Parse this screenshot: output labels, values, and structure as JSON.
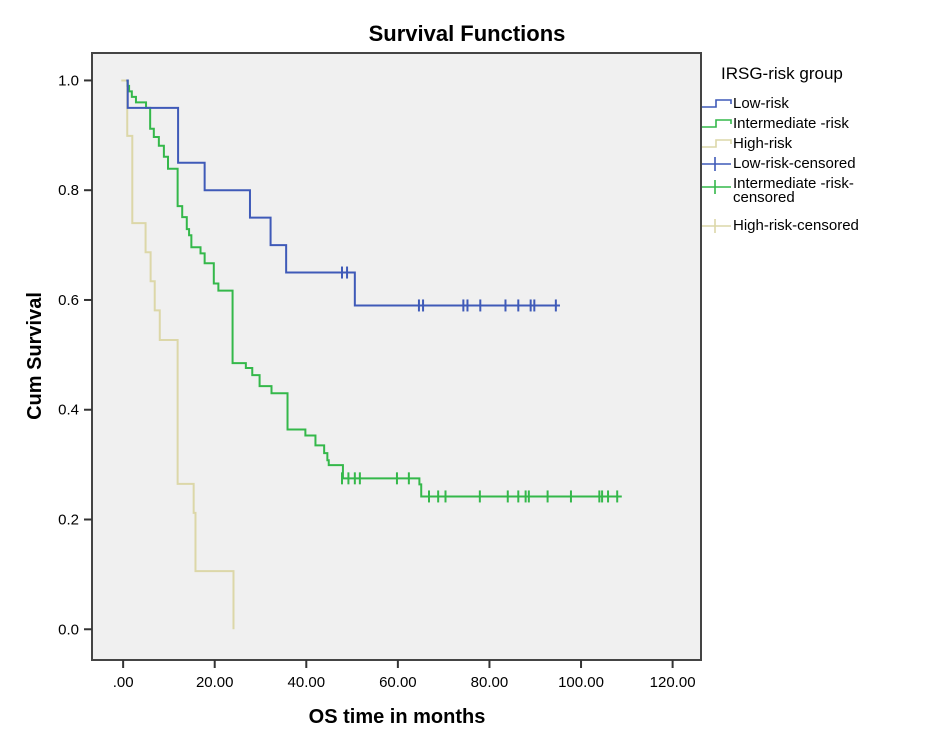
{
  "chart_data": {
    "type": "line",
    "subtype": "kaplan-meier-step",
    "title": "Survival Functions",
    "xlabel": "OS time in months",
    "ylabel": "Cum Survival",
    "xlim": [
      -6.8,
      126.2
    ],
    "ylim": [
      -0.056,
      1.05
    ],
    "xticks": [
      0,
      20,
      40,
      60,
      80,
      100,
      120
    ],
    "xtick_labels": [
      ".00",
      "20.00",
      "40.00",
      "60.00",
      "80.00",
      "100.00",
      "120.00"
    ],
    "yticks": [
      0.0,
      0.2,
      0.4,
      0.6,
      0.8,
      1.0
    ],
    "ytick_labels": [
      "0.0",
      "0.2",
      "0.4",
      "0.6",
      "0.8",
      "1.0"
    ],
    "grid": false,
    "plot_background": "#f0f0f0",
    "legend": {
      "title": "IRSG-risk group",
      "position": "right",
      "entries": [
        {
          "label": "Low-risk",
          "kind": "line",
          "color": "#3f5ab8"
        },
        {
          "label": "Intermediate -risk",
          "kind": "line",
          "color": "#34b84a"
        },
        {
          "label": "High-risk",
          "kind": "line",
          "color": "#dcd7a8"
        },
        {
          "label": "Low-risk-censored",
          "kind": "censor",
          "color": "#3f5ab8"
        },
        {
          "label": [
            "Intermediate -risk-",
            "censored"
          ],
          "kind": "censor",
          "color": "#34b84a"
        },
        {
          "label": "High-risk-censored",
          "kind": "censor",
          "color": "#dcd7a8"
        }
      ]
    },
    "series": [
      {
        "name": "Low-risk",
        "color": "#3f5ab8",
        "start": [
          0.7,
          1.0
        ],
        "steps": [
          [
            1.0,
            0.95
          ],
          [
            12.0,
            0.85
          ],
          [
            17.8,
            0.8
          ],
          [
            27.7,
            0.75
          ],
          [
            32.2,
            0.7
          ],
          [
            35.6,
            0.65
          ],
          [
            50.6,
            0.59
          ]
        ],
        "end_time": 95.4,
        "censored": [
          [
            47.8,
            0.65
          ],
          [
            48.9,
            0.65
          ],
          [
            64.6,
            0.59
          ],
          [
            65.5,
            0.59
          ],
          [
            74.3,
            0.59
          ],
          [
            75.2,
            0.59
          ],
          [
            78.0,
            0.59
          ],
          [
            83.5,
            0.59
          ],
          [
            86.3,
            0.59
          ],
          [
            89.0,
            0.59
          ],
          [
            89.8,
            0.59
          ],
          [
            94.5,
            0.59
          ]
        ]
      },
      {
        "name": "Intermediate -risk",
        "color": "#34b84a",
        "start": [
          0.8,
          1.0
        ],
        "steps": [
          [
            1.0,
            0.99
          ],
          [
            1.3,
            0.98
          ],
          [
            1.9,
            0.97
          ],
          [
            2.8,
            0.96
          ],
          [
            5.0,
            0.95
          ],
          [
            5.9,
            0.912
          ],
          [
            6.7,
            0.897
          ],
          [
            7.8,
            0.881
          ],
          [
            8.9,
            0.861
          ],
          [
            9.8,
            0.839
          ],
          [
            11.9,
            0.771
          ],
          [
            12.9,
            0.751
          ],
          [
            13.9,
            0.729
          ],
          [
            14.4,
            0.718
          ],
          [
            14.9,
            0.696
          ],
          [
            16.9,
            0.685
          ],
          [
            17.8,
            0.667
          ],
          [
            19.8,
            0.63
          ],
          [
            20.8,
            0.617
          ],
          [
            23.9,
            0.485
          ],
          [
            26.8,
            0.476
          ],
          [
            28.2,
            0.463
          ],
          [
            29.8,
            0.443
          ],
          [
            32.4,
            0.43
          ],
          [
            35.9,
            0.364
          ],
          [
            39.8,
            0.353
          ],
          [
            42.0,
            0.335
          ],
          [
            43.9,
            0.321
          ],
          [
            44.6,
            0.308
          ],
          [
            44.9,
            0.299
          ],
          [
            48.0,
            0.275
          ],
          [
            64.7,
            0.264
          ],
          [
            65.1,
            0.242
          ]
        ],
        "end_time": 108.9,
        "censored": [
          [
            47.8,
            0.275
          ],
          [
            49.2,
            0.275
          ],
          [
            50.6,
            0.275
          ],
          [
            51.7,
            0.275
          ],
          [
            59.8,
            0.275
          ],
          [
            62.4,
            0.275
          ],
          [
            66.8,
            0.242
          ],
          [
            68.8,
            0.242
          ],
          [
            70.4,
            0.242
          ],
          [
            77.9,
            0.242
          ],
          [
            84.0,
            0.242
          ],
          [
            86.3,
            0.242
          ],
          [
            87.9,
            0.242
          ],
          [
            88.6,
            0.242
          ],
          [
            92.7,
            0.242
          ],
          [
            97.8,
            0.242
          ],
          [
            104.0,
            0.242
          ],
          [
            104.6,
            0.242
          ],
          [
            105.9,
            0.242
          ],
          [
            107.9,
            0.242
          ]
        ]
      },
      {
        "name": "High-risk",
        "color": "#dcd7a8",
        "start": [
          -0.4,
          1.0
        ],
        "steps": [
          [
            0.9,
            0.899
          ],
          [
            2.0,
            0.74
          ],
          [
            4.9,
            0.687
          ],
          [
            6.0,
            0.634
          ],
          [
            6.9,
            0.581
          ],
          [
            8.0,
            0.527
          ],
          [
            11.9,
            0.265
          ],
          [
            15.4,
            0.212
          ],
          [
            15.8,
            0.106
          ],
          [
            24.1,
            0.0
          ]
        ],
        "end_time": 24.1,
        "censored": []
      }
    ]
  }
}
